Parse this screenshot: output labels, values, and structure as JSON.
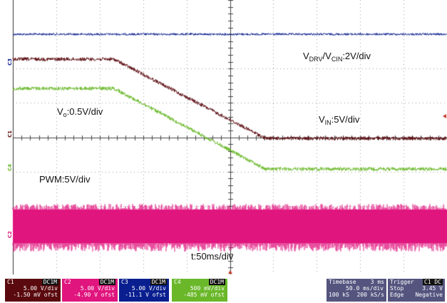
{
  "annotations": {
    "vdrv_prefix": "V",
    "vdrv_sub1": "DRV",
    "vdrv_mid": "/V",
    "vdrv_sub2": "CIN",
    "vdrv_suffix": ":2V/div",
    "vo_prefix": "V",
    "vo_sub": "o",
    "vo_suffix": ":0.5V/div",
    "vin_prefix": "V",
    "vin_sub": "IN",
    "vin_suffix": ":5V/div",
    "pwm": "PWM:5V/div",
    "time": "t:50ms/div"
  },
  "channel_markers": {
    "c1": "C1",
    "c2": "C2",
    "c3": "C3",
    "c4": "C4"
  },
  "colors": {
    "ch1": "#5a0a0f",
    "ch2": "#e0157e",
    "ch3": "#0a1f8f",
    "ch4": "#6ab82a",
    "grid": "#555555"
  },
  "footer": {
    "ch1": {
      "label": "C1",
      "coupling": "DC1M",
      "scale": "5.00 V/div",
      "offset": "-1.50 mV ofst",
      "color": "#5a0a0f"
    },
    "ch2": {
      "label": "C2",
      "coupling": "DC1M",
      "scale": "5.00 V/div",
      "offset": "-4.90 V ofst",
      "color": "#e0157e"
    },
    "ch3": {
      "label": "C3",
      "coupling": "DC1M",
      "scale": "5.00 V/div",
      "offset": "-11.1 V ofst",
      "color": "#0a1f8f"
    },
    "ch4": {
      "label": "C4",
      "coupling": "DC1M",
      "scale": "500 mV/div",
      "offset": "-485 mV ofst",
      "color": "#6ab82a"
    },
    "timebase": {
      "label": "Timebase",
      "value_top": "3 ms",
      "line2": "50.0 ms/div",
      "line3_left": "100 kS",
      "line3_right": "200 kS/s"
    },
    "trigger": {
      "label": "Trigger",
      "channel": "C1 DC",
      "line2_left": "Stop",
      "line2_right": "3.45 V",
      "line3_left": "Edge",
      "line3_right": "Negative"
    }
  }
}
